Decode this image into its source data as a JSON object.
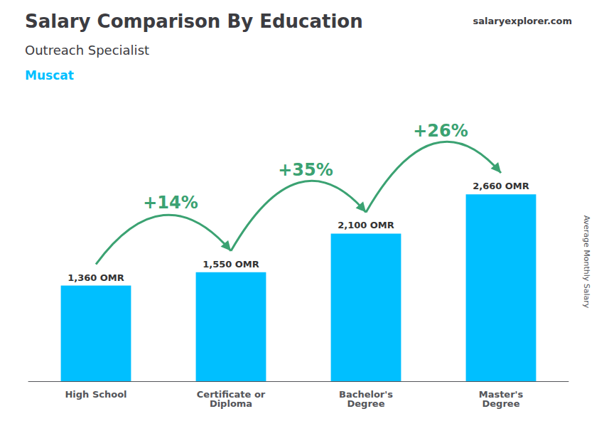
{
  "chart_data": {
    "type": "bar",
    "title": "Salary Comparison By Education",
    "subtitle": "Outreach Specialist",
    "annotations": [
      "Muscat",
      "salaryexplorer.com",
      "+14%",
      "+35%",
      "+26%"
    ],
    "ylabel": "Average Monthly Salary",
    "categories": [
      "High School",
      "Certificate or\nDiploma",
      "Bachelor's\nDegree",
      "Master's\nDegree"
    ],
    "values": [
      1360,
      1550,
      2100,
      2660
    ],
    "value_labels": [
      "1,360 OMR",
      "1,550 OMR",
      "2,100 OMR",
      "2,660 OMR"
    ],
    "data_labels": true,
    "color": "#00BFFF",
    "ylim": [
      0,
      3400
    ],
    "grid": false,
    "tick_labels": "x"
  }
}
